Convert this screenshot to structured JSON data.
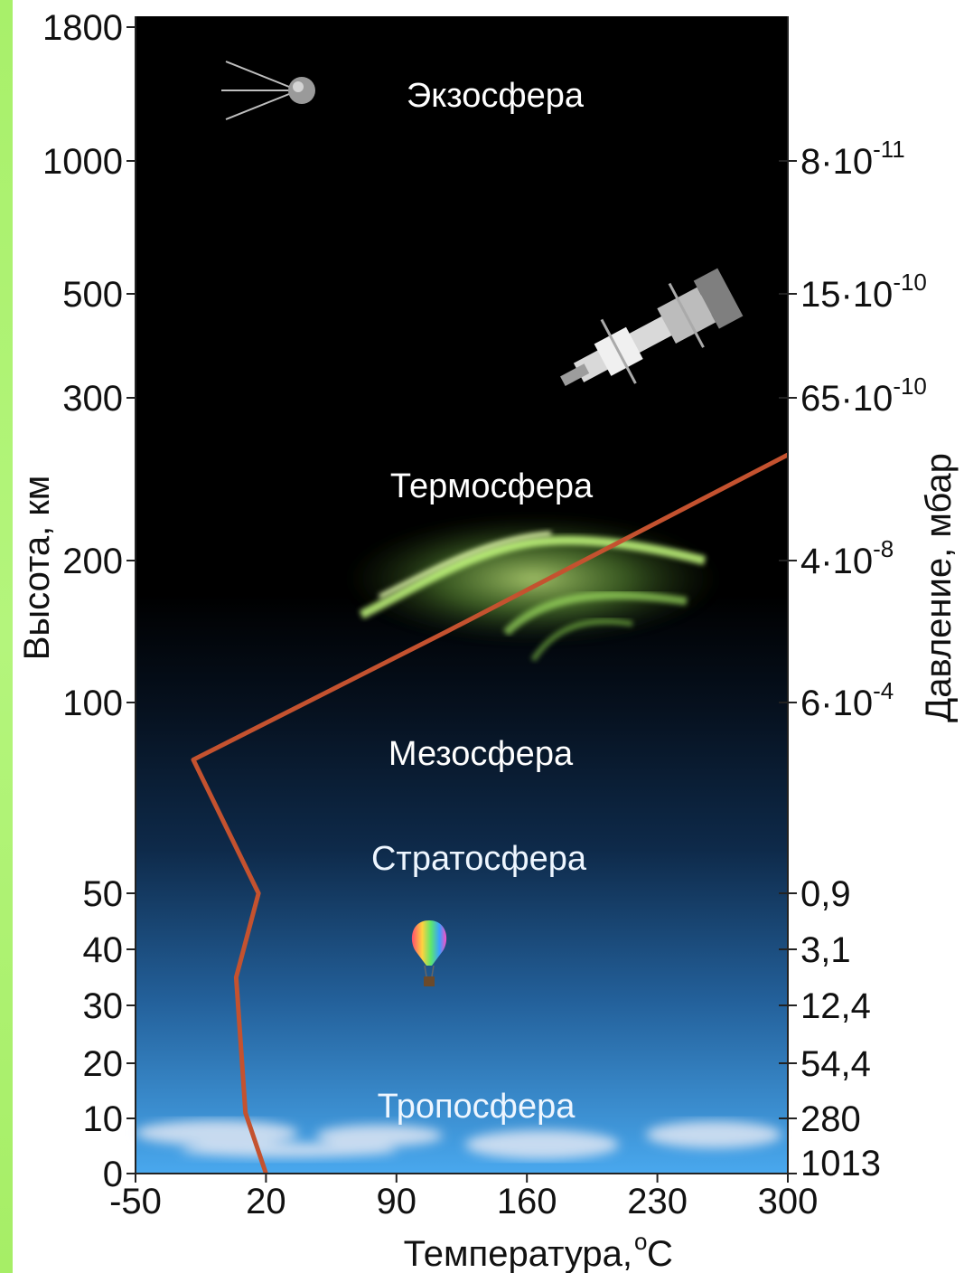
{
  "chart_data": {
    "type": "line",
    "title": "",
    "xlabel": "Температура, °С",
    "xlabel_main": "Температура, ",
    "xlabel_unit": "С",
    "xlabel_degree": "о",
    "ylabel": "Высота, км",
    "y2label": "Давление, мбар",
    "x_ticks": [
      -50,
      20,
      90,
      160,
      230,
      300
    ],
    "x_tick_labels": [
      "-50",
      "20",
      "90",
      "160",
      "230",
      "300"
    ],
    "xlim": [
      -50,
      300
    ],
    "y_ticks": [
      0,
      10,
      20,
      30,
      40,
      50,
      100,
      200,
      300,
      500,
      1000,
      1800
    ],
    "y_tick_labels": [
      "0",
      "10",
      "20",
      "30",
      "40",
      "50",
      "100",
      "200",
      "300",
      "500",
      "1000",
      "1800"
    ],
    "ylim": [
      0,
      1800
    ],
    "y_scale": "piecewise (non-linear)",
    "grid": false,
    "series": [
      {
        "color": "#c4522f",
        "x": [
          20,
          9,
          4,
          16,
          -19,
          117,
          300
        ],
        "y": [
          0,
          11,
          35,
          50,
          85,
          150,
          265
        ]
      }
    ],
    "pressure_ticks": [
      {
        "alt": 1000,
        "mantissa": "8·10",
        "exp": "-11"
      },
      {
        "alt": 500,
        "mantissa": "15·10",
        "exp": "-10"
      },
      {
        "alt": 300,
        "mantissa": "65·10",
        "exp": "-10"
      },
      {
        "alt": 200,
        "mantissa": "4·10",
        "exp": "-8"
      },
      {
        "alt": 100,
        "mantissa": "6·10",
        "exp": "-4"
      },
      {
        "alt": 50,
        "mantissa": "0,9",
        "exp": ""
      },
      {
        "alt": 40,
        "mantissa": "3,1",
        "exp": ""
      },
      {
        "alt": 30,
        "mantissa": "12,4",
        "exp": ""
      },
      {
        "alt": 20,
        "mantissa": "54,4",
        "exp": ""
      },
      {
        "alt": 10,
        "mantissa": "280",
        "exp": ""
      },
      {
        "alt": 0,
        "mantissa": "1013",
        "exp": ""
      }
    ],
    "layers": [
      {
        "name": "Экзосфера",
        "alt": 1500
      },
      {
        "name": "Термосфера",
        "alt": 245
      },
      {
        "name": "Мезосфера",
        "alt": 88
      },
      {
        "name": "Стратосфера",
        "alt": 56
      },
      {
        "name": "Тропосфера",
        "alt": 11
      }
    ]
  },
  "colors": {
    "sky_top": "#000000",
    "sky_mid": "#0d2540",
    "sky_bottom": "#3f9fe6",
    "temperature_line": "#c4522f",
    "aurora": "#b7ff6a",
    "page_strip": "#a8f06a"
  },
  "icons": [
    "satellite-icon",
    "space-station-icon",
    "aurora-image",
    "hot-air-balloon-icon",
    "clouds-image"
  ]
}
